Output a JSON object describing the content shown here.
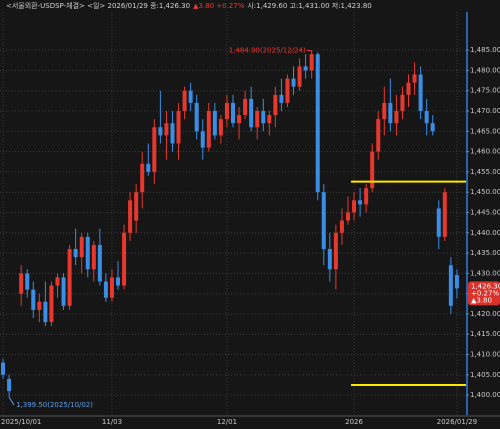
{
  "chart_data": {
    "type": "candlestick",
    "title": "<서울외환-USDSP-체결> <일> 2026/01/29 종:1,426.30",
    "change": "▲3.80 +0.27%",
    "ohlc_text": "시:1,429.60 고:1,431.00 저:1,423.80",
    "categories": [
      "2025/10/01",
      null,
      null,
      null,
      null,
      null,
      null,
      null,
      null,
      null,
      null,
      null,
      null,
      null,
      null,
      null,
      null,
      null,
      "11/03",
      null,
      null,
      null,
      null,
      null,
      null,
      null,
      null,
      null,
      null,
      null,
      null,
      null,
      null,
      null,
      null,
      null,
      null,
      "12/01",
      null,
      null,
      null,
      null,
      null,
      null,
      null,
      null,
      null,
      null,
      null,
      null,
      null,
      null,
      null,
      null,
      null,
      null,
      null,
      null,
      "2026",
      null,
      null,
      null,
      null,
      null,
      null,
      null,
      null,
      null,
      null,
      null,
      null,
      null,
      null,
      null,
      null,
      "2026/01/29"
    ],
    "open": [
      1408,
      1404,
      null,
      1425,
      1430,
      1426,
      1421,
      1423,
      1418,
      1427,
      1429,
      1422,
      1436,
      1434,
      1439,
      1431,
      1437,
      1428,
      1424,
      1429,
      1427,
      1440,
      1443,
      1450,
      1457,
      1455,
      1466,
      1464,
      1467,
      1462,
      1470,
      1475,
      1472,
      1465,
      1461,
      1470,
      1464,
      1468,
      1472,
      1467,
      1469,
      1473,
      1466,
      1470,
      1467,
      1469,
      1474,
      1472,
      1478,
      1476,
      1481,
      1480,
      1484,
      1450,
      1436,
      1431,
      1440,
      1443,
      1445,
      1448,
      1447,
      1451,
      1460,
      1468,
      1472,
      1467,
      1470,
      1474,
      1477,
      1479,
      1470,
      1467,
      1446,
      1439,
      1432,
      1429.6
    ],
    "high": [
      1409,
      1405,
      null,
      1432,
      1431,
      1428,
      1425,
      1428,
      1428,
      1430,
      1430,
      1437,
      1441,
      1440,
      1440,
      1438,
      1441,
      1430,
      1431,
      1433,
      1442,
      1450,
      1452,
      1460,
      1462,
      1468,
      1475,
      1470,
      1470,
      1472,
      1476,
      1477,
      1474,
      1468,
      1472,
      1472,
      1469,
      1474,
      1474,
      1471,
      1475,
      1476,
      1471,
      1473,
      1470,
      1476,
      1478,
      1479,
      1481,
      1483,
      1484,
      1484.9,
      1484.5,
      1452,
      1440,
      1442,
      1446,
      1449,
      1450,
      1451,
      1452,
      1462,
      1470,
      1476,
      1478,
      1474,
      1476,
      1479,
      1482,
      1481,
      1473,
      1469,
      1448,
      1451,
      1434,
      1431
    ],
    "low": [
      1404,
      1399.5,
      null,
      1422,
      1424,
      1419,
      1418,
      1417,
      1417,
      1424,
      1421,
      1421,
      1432,
      1430,
      1429,
      1428,
      1427,
      1423,
      1423,
      1426,
      1426,
      1438,
      1440,
      1446,
      1454,
      1452,
      1462,
      1458,
      1460,
      1458,
      1468,
      1470,
      1463,
      1458,
      1460,
      1463,
      1462,
      1466,
      1466,
      1463,
      1468,
      1465,
      1463,
      1465,
      1464,
      1466,
      1470,
      1471,
      1474,
      1475,
      1478,
      1478,
      1448,
      1432,
      1428,
      1426,
      1437,
      1442,
      1443,
      1444,
      1445,
      1450,
      1458,
      1464,
      1465,
      1464,
      1468,
      1471,
      1474,
      1468,
      1464,
      1464,
      1436,
      1438,
      1420,
      1423.8
    ],
    "close": [
      1405,
      1401,
      null,
      1430,
      1426,
      1421,
      1423,
      1418,
      1427,
      1429,
      1422,
      1436,
      1434,
      1439,
      1431,
      1437,
      1428,
      1424,
      1429,
      1427,
      1440,
      1448,
      1450,
      1457,
      1455,
      1466,
      1464,
      1467,
      1462,
      1470,
      1475,
      1472,
      1465,
      1461,
      1470,
      1464,
      1468,
      1472,
      1467,
      1469,
      1473,
      1466,
      1470,
      1467,
      1469,
      1474,
      1472,
      1478,
      1476,
      1481,
      1480,
      1484,
      1450,
      1436,
      1431,
      1440,
      1443,
      1445,
      1448,
      1447,
      1451,
      1460,
      1468,
      1472,
      1467,
      1470,
      1474,
      1477,
      1479,
      1470,
      1467,
      1465,
      1439,
      1450,
      1422,
      1426.3
    ],
    "up_color": "#e8382e",
    "down_color": "#3a8ee6",
    "ylim": [
      1395.1,
      1494.4
    ],
    "yticks": [
      {
        "value": 1400,
        "label": "1,400.00"
      },
      {
        "value": 1405,
        "label": "1,405.00"
      },
      {
        "value": 1410,
        "label": "1,410.00"
      },
      {
        "value": 1415,
        "label": "1,415.00"
      },
      {
        "value": 1420,
        "label": "1,420.00"
      },
      {
        "value": 1425,
        "label": "1,425.00"
      },
      {
        "value": 1430,
        "label": "1,430.00"
      },
      {
        "value": 1435,
        "label": "1,435.00"
      },
      {
        "value": 1440,
        "label": "1,440.00"
      },
      {
        "value": 1445,
        "label": "1,445.00"
      },
      {
        "value": 1450,
        "label": "1,450.00"
      },
      {
        "value": 1455,
        "label": "1,455.00"
      },
      {
        "value": 1460,
        "label": "1,460.00"
      },
      {
        "value": 1465,
        "label": "1,465.00"
      },
      {
        "value": 1470,
        "label": "1,470.00"
      },
      {
        "value": 1475,
        "label": "1,475.00"
      },
      {
        "value": 1480,
        "label": "1,480.00"
      },
      {
        "value": 1485,
        "label": "1,485.00"
      }
    ],
    "grid": true,
    "annotations": [
      {
        "text": "1,484.90(2025/12/24)",
        "value": 1484.9,
        "color": "#e8382e"
      },
      {
        "text": "1,399.50(2025/10/02)",
        "value": 1399.5,
        "color": "#5a9ee6"
      }
    ],
    "hlines": [
      {
        "value": 1452.6,
        "color": "#ffe600"
      },
      {
        "value": 1402.5,
        "color": "#ffe600"
      }
    ],
    "last_price": {
      "value": 1426.3,
      "label": "1,426.30"
    },
    "last_change_labels": [
      "+0.27%",
      "▲3.80"
    ]
  }
}
